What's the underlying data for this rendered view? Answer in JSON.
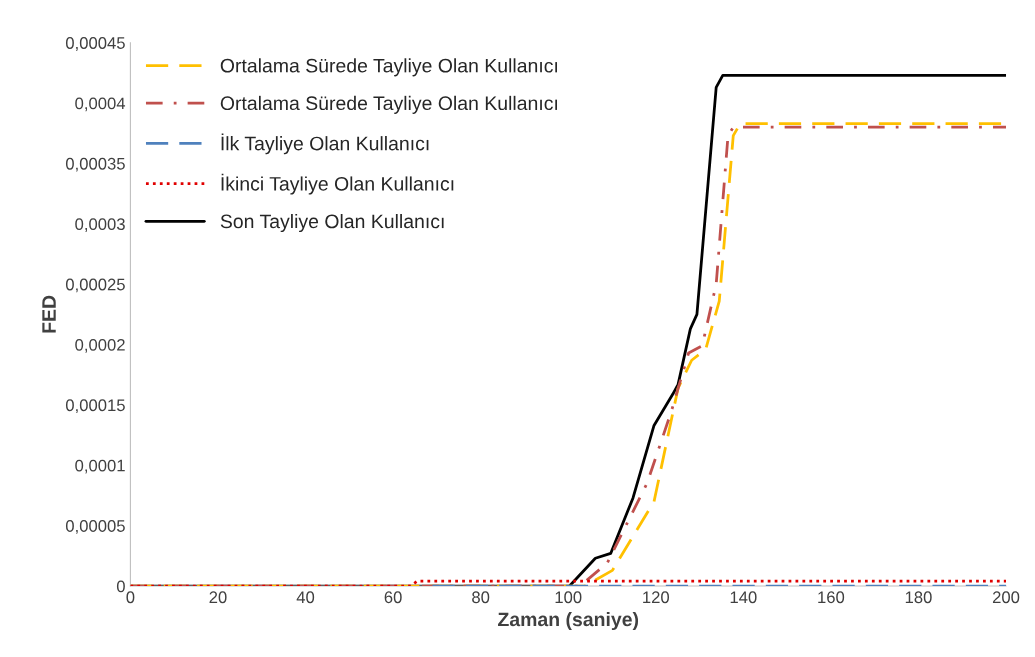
{
  "chart_data": {
    "type": "line",
    "xlabel": "Zaman (saniye)",
    "ylabel": "FED",
    "xlim": [
      0,
      200
    ],
    "xticks": [
      0,
      20,
      40,
      60,
      80,
      100,
      120,
      140,
      160,
      180,
      200
    ],
    "ylim": [
      0,
      0.00045
    ],
    "yticks": [
      0,
      {
        "value": 5e-05,
        "label": "0,00005"
      },
      {
        "value": 0.0001,
        "label": "0,0001"
      },
      {
        "value": 0.00015,
        "label": "0,00015"
      },
      {
        "value": 0.0002,
        "label": "0,0002"
      },
      {
        "value": 0.00025,
        "label": "0,00025"
      },
      {
        "value": 0.0003,
        "label": "0,0003"
      },
      {
        "value": 0.00035,
        "label": "0,00035"
      },
      {
        "value": 0.0004,
        "label": "0,0004"
      },
      {
        "value": 0.00045,
        "label": "0,00045"
      }
    ],
    "grid": false,
    "legend": "top left",
    "series": [
      {
        "name": "Ortalama Sürede Tayliye Olan Kullanıcı",
        "color": "#ffc000",
        "line_style": "dashed",
        "x": [
          0,
          103.8,
          110.1,
          119.6,
          125.1,
          128.2,
          131.4,
          134.5,
          137.7,
          139.3,
          200
        ],
        "values": [
          0,
          0,
          1.3e-05,
          7e-05,
          0.000164,
          0.000187,
          0.000196,
          0.000236,
          0.000373,
          0.000383,
          0.000383
        ]
      },
      {
        "name": "Ortalama Sürede Tayliye Olan Kullanıcı",
        "color": "#c0504d",
        "line_style": "dashdot",
        "x": [
          0,
          102.7,
          108.9,
          118,
          123.5,
          127.5,
          130.6,
          133.8,
          136.5,
          137.7,
          200
        ],
        "values": [
          0,
          0,
          1.9e-05,
          8.5e-05,
          0.000144,
          0.000193,
          0.000199,
          0.00025,
          0.000373,
          0.00038,
          0.00038
        ]
      },
      {
        "name": "İlk Tayliye Olan Kullanıcı",
        "color": "#4f81bd",
        "line_style": "dashed",
        "x": [
          69,
          200
        ],
        "values": [
          0,
          0
        ]
      },
      {
        "name": "İkinci Tayliye Olan Kullanıcı",
        "color": "#e00000",
        "line_style": "dotted",
        "x": [
          0,
          64,
          65.5,
          200
        ],
        "values": [
          0,
          0,
          4e-06,
          4e-06
        ]
      },
      {
        "name": "Son Tayliye Olan Kullanıcı",
        "color": "#000000",
        "line_style": "solid",
        "x": [
          0,
          100.3,
          106.2,
          109.7,
          114.8,
          119.6,
          123.9,
          125.1,
          127.9,
          129.4,
          133.8,
          135.3,
          200
        ],
        "values": [
          0,
          0,
          2.3e-05,
          2.7e-05,
          7.3e-05,
          0.000133,
          0.000159,
          0.000167,
          0.000213,
          0.000225,
          0.000413,
          0.000423,
          0.000423
        ]
      }
    ]
  }
}
